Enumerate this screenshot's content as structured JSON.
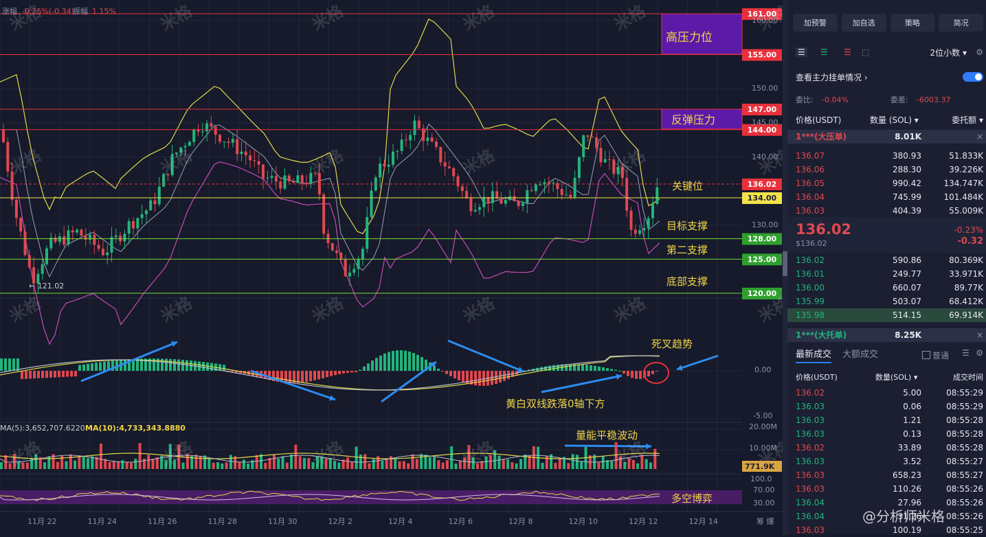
{
  "top_info": {
    "change_label": "涨幅",
    "change_value": "-0.25%(-0.34)",
    "amp_label": "振幅",
    "amp_value": "1.15%"
  },
  "levels": [
    {
      "price": "161.00",
      "color": "#e8313c",
      "y": 161
    },
    {
      "price": "155.00",
      "color": "#e8313c",
      "y": 155
    },
    {
      "price": "147.00",
      "color": "#e8313c",
      "y": 147
    },
    {
      "price": "144.00",
      "color": "#e8313c",
      "y": 144
    },
    {
      "price": "136.02",
      "color": "#e8313c",
      "y": 136.02,
      "dashed": true
    },
    {
      "price": "134.00",
      "color": "#f2e24a",
      "y": 134
    },
    {
      "price": "128.00",
      "color": "#7cd93a",
      "y": 128
    },
    {
      "price": "125.00",
      "color": "#7cd93a",
      "y": 125
    },
    {
      "price": "120.00",
      "color": "#7cd93a",
      "y": 120
    }
  ],
  "level_texts": {
    "high_pressure": "高压力位",
    "rebound_pressure": "反弹压力",
    "key_level": "关键位",
    "target_support": "目标支撑",
    "second_support": "第二支撑",
    "bottom_support": "底部支撑",
    "low_mark": "← 121.02"
  },
  "price_axis": [
    "160.00",
    "150.00",
    "145.00",
    "140.00",
    "130.00"
  ],
  "macd": {
    "zero": "0.00",
    "neg": "-5.00",
    "death_cross": "死叉趋势",
    "note": "黄白双线跌落0轴下方"
  },
  "volume": {
    "ma5_label": "MA(5):3,652,707.6220",
    "ma10_label": "MA(10):4,733,343.8880",
    "top": "20.00M",
    "mid": "10.00M",
    "current": "771.9K",
    "note": "量能平稳波动"
  },
  "rsi": {
    "top": "100.0",
    "mid": "70.00",
    "low": "30.00",
    "note": "多空博弈"
  },
  "x_labels": [
    "11月 22",
    "11月 24",
    "11月 26",
    "11月 28",
    "11月 30",
    "12月 2",
    "12月 4",
    "12月 6",
    "12月 8",
    "12月 10",
    "12月 12",
    "12月 14"
  ],
  "corner_label": "筹 爆",
  "watermark": "米格",
  "panel": {
    "buttons": [
      "加预警",
      "加自选",
      "策略",
      "简况"
    ],
    "decimals": "2位小数",
    "main_orders": "查看主力挂单情况",
    "weibi_label": "委比:",
    "weibi": "-0.04%",
    "weicha_label": "委差:",
    "weicha": "-6003.37",
    "head_price": "价格(USDT)",
    "head_qty": "数量 (SOL)",
    "head_total": "委托额",
    "big_ask_label": "1***(大压单)",
    "big_ask_qty": "8.01K",
    "asks": [
      {
        "p": "136.07",
        "q": "380.93",
        "t": "51.833K"
      },
      {
        "p": "136.06",
        "q": "288.30",
        "t": "39.226K"
      },
      {
        "p": "136.05",
        "q": "990.42",
        "t": "134.747K"
      },
      {
        "p": "136.04",
        "q": "745.99",
        "t": "101.484K"
      },
      {
        "p": "136.03",
        "q": "404.39",
        "t": "55.009K"
      }
    ],
    "last_price": "136.02",
    "last_price_sub": "$136.02",
    "last_pct": "-0.23%",
    "last_chg": "-0.32",
    "bids": [
      {
        "p": "136.02",
        "q": "590.86",
        "t": "80.369K"
      },
      {
        "p": "136.01",
        "q": "249.77",
        "t": "33.971K"
      },
      {
        "p": "136.00",
        "q": "660.07",
        "t": "89.77K"
      },
      {
        "p": "135.99",
        "q": "503.07",
        "t": "68.412K"
      },
      {
        "p": "135.98",
        "q": "514.15",
        "t": "69.914K"
      }
    ],
    "big_bid_label": "1***(大托单)",
    "big_bid_qty": "8.25K",
    "tab_latest": "最新成交",
    "tab_large": "大额成交",
    "normal": "普通",
    "trade_head_price": "价格(USDT)",
    "trade_head_qty": "数量(SOL)",
    "trade_head_time": "成交时间",
    "trades": [
      {
        "p": "136.02",
        "q": "5.00",
        "t": "08:55:29",
        "side": "red"
      },
      {
        "p": "136.03",
        "q": "0.06",
        "t": "08:55:29",
        "side": "green"
      },
      {
        "p": "136.03",
        "q": "1.21",
        "t": "08:55:28",
        "side": "green"
      },
      {
        "p": "136.03",
        "q": "0.13",
        "t": "08:55:28",
        "side": "green"
      },
      {
        "p": "136.02",
        "q": "33.89",
        "t": "08:55:28",
        "side": "red"
      },
      {
        "p": "136.03",
        "q": "3.52",
        "t": "08:55:27",
        "side": "green"
      },
      {
        "p": "136.03",
        "q": "658.23",
        "t": "08:55:27",
        "side": "red"
      },
      {
        "p": "136.03",
        "q": "110.26",
        "t": "08:55:26",
        "side": "red"
      },
      {
        "p": "136.04",
        "q": "27.96",
        "t": "08:55:26",
        "side": "green"
      },
      {
        "p": "136.04",
        "q": "31.26",
        "t": "08:55:26",
        "side": "green"
      },
      {
        "p": "136.03",
        "q": "100.19",
        "t": "08:55:25",
        "side": "red"
      }
    ],
    "footer_watermark": "@分析师米格"
  }
}
